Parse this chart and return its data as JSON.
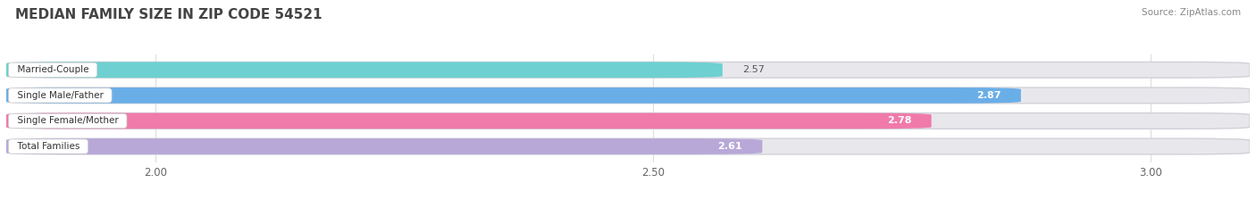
{
  "title": "MEDIAN FAMILY SIZE IN ZIP CODE 54521",
  "source": "Source: ZipAtlas.com",
  "categories": [
    "Married-Couple",
    "Single Male/Father",
    "Single Female/Mother",
    "Total Families"
  ],
  "values": [
    2.57,
    2.87,
    2.78,
    2.61
  ],
  "bar_colors": [
    "#6ed0d0",
    "#6aaee8",
    "#f07aaa",
    "#b8a8d8"
  ],
  "bg_color": "#ffffff",
  "bar_bg_color": "#e8e8ec",
  "bar_border_color": "#d0d0d8",
  "xlim": [
    1.85,
    3.1
  ],
  "xticks": [
    2.0,
    2.5,
    3.0
  ],
  "bar_height": 0.62,
  "figsize": [
    14.06,
    2.33
  ],
  "dpi": 100,
  "value_inside_threshold": 2.6
}
